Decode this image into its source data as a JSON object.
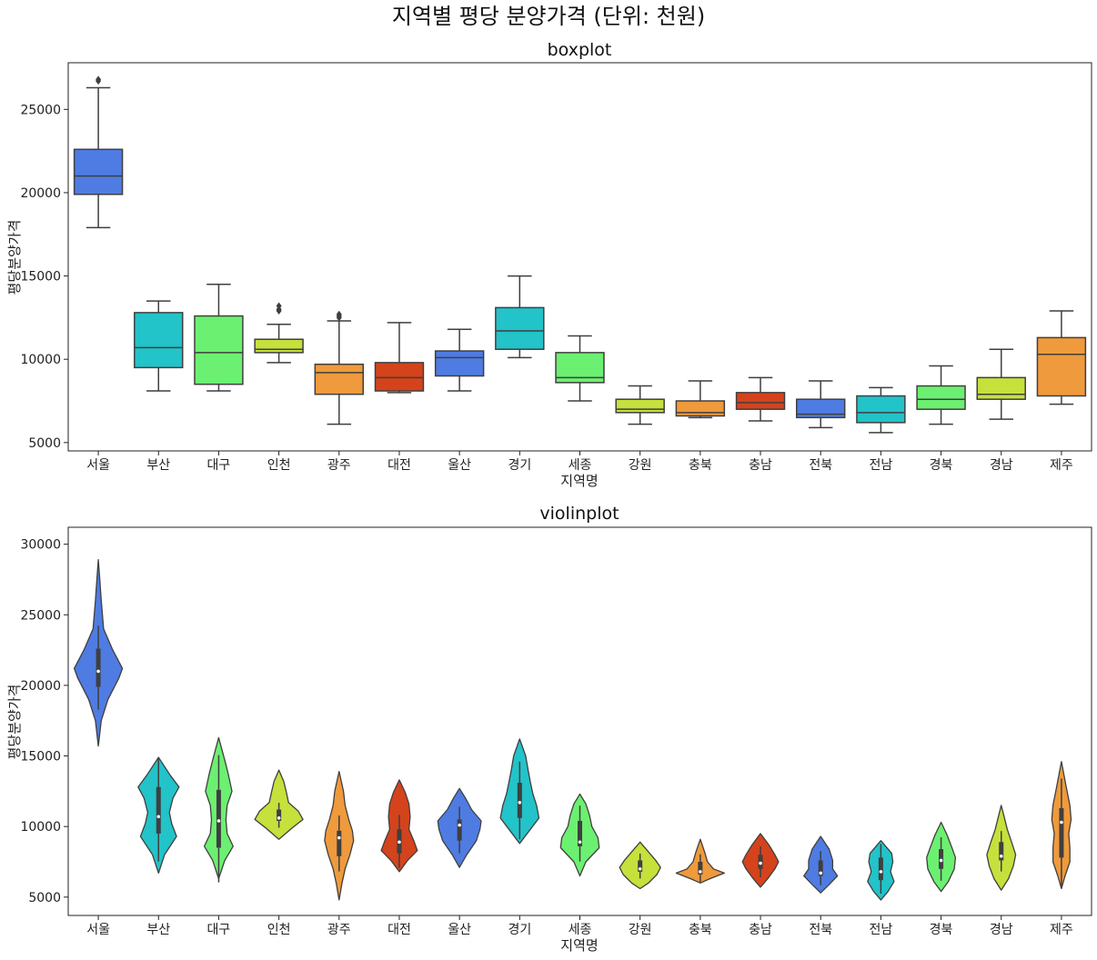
{
  "suptitle": "지역별 평당 분양가격 (단위: 천원)",
  "palette": [
    "#4f7ce2",
    "#22c3c9",
    "#6cf071",
    "#c6e03c",
    "#ef9a3c",
    "#d4431c",
    "#4f7ce2",
    "#22c3c9",
    "#6cf071",
    "#c6e03c",
    "#ef9a3c",
    "#d4431c",
    "#4f7ce2",
    "#22c3c9",
    "#6cf071",
    "#c6e03c",
    "#ef9a3c"
  ],
  "chart_data": [
    {
      "type": "boxplot",
      "title": "boxplot",
      "xlabel": "지역명",
      "ylabel": "평당분양가격",
      "ylim": [
        4500,
        27800
      ],
      "yticks": [
        5000,
        10000,
        15000,
        20000,
        25000
      ],
      "categories": [
        "서울",
        "부산",
        "대구",
        "인천",
        "광주",
        "대전",
        "울산",
        "경기",
        "세종",
        "강원",
        "충북",
        "충남",
        "전북",
        "전남",
        "경북",
        "경남",
        "제주"
      ],
      "boxes": [
        {
          "whislo": 17900,
          "q1": 19900,
          "med": 21000,
          "q3": 22600,
          "whishi": 26300,
          "fliers": [
            26700,
            26800
          ]
        },
        {
          "whislo": 8100,
          "q1": 9500,
          "med": 10700,
          "q3": 12800,
          "whishi": 13500,
          "fliers": []
        },
        {
          "whislo": 8100,
          "q1": 8500,
          "med": 10400,
          "q3": 12600,
          "whishi": 14500,
          "fliers": []
        },
        {
          "whislo": 9800,
          "q1": 10400,
          "med": 10600,
          "q3": 11200,
          "whishi": 12100,
          "fliers": [
            12900,
            13000,
            13200
          ]
        },
        {
          "whislo": 6100,
          "q1": 7900,
          "med": 9200,
          "q3": 9700,
          "whishi": 12300,
          "fliers": [
            12500,
            12600,
            12700
          ]
        },
        {
          "whislo": 8000,
          "q1": 8100,
          "med": 8900,
          "q3": 9800,
          "whishi": 12200,
          "fliers": []
        },
        {
          "whislo": 8100,
          "q1": 9000,
          "med": 10100,
          "q3": 10500,
          "whishi": 11800,
          "fliers": []
        },
        {
          "whislo": 10100,
          "q1": 10600,
          "med": 11700,
          "q3": 13100,
          "whishi": 15000,
          "fliers": []
        },
        {
          "whislo": 7500,
          "q1": 8600,
          "med": 8900,
          "q3": 10400,
          "whishi": 11400,
          "fliers": []
        },
        {
          "whislo": 6100,
          "q1": 6800,
          "med": 7000,
          "q3": 7600,
          "whishi": 8400,
          "fliers": []
        },
        {
          "whislo": 6500,
          "q1": 6600,
          "med": 6800,
          "q3": 7500,
          "whishi": 8700,
          "fliers": []
        },
        {
          "whislo": 6300,
          "q1": 7000,
          "med": 7400,
          "q3": 8000,
          "whishi": 8900,
          "fliers": []
        },
        {
          "whislo": 5900,
          "q1": 6500,
          "med": 6700,
          "q3": 7600,
          "whishi": 8700,
          "fliers": []
        },
        {
          "whislo": 5600,
          "q1": 6200,
          "med": 6800,
          "q3": 7800,
          "whishi": 8300,
          "fliers": []
        },
        {
          "whislo": 6100,
          "q1": 7000,
          "med": 7600,
          "q3": 8400,
          "whishi": 9600,
          "fliers": []
        },
        {
          "whislo": 6400,
          "q1": 7600,
          "med": 7900,
          "q3": 8900,
          "whishi": 10600,
          "fliers": []
        },
        {
          "whislo": 7300,
          "q1": 7800,
          "med": 10300,
          "q3": 11300,
          "whishi": 12900,
          "fliers": []
        }
      ]
    },
    {
      "type": "violin",
      "title": "violinplot",
      "xlabel": "지역명",
      "ylabel": "평당분양가격",
      "ylim": [
        3700,
        31200
      ],
      "yticks": [
        5000,
        10000,
        15000,
        20000,
        25000,
        30000
      ],
      "categories": [
        "서울",
        "부산",
        "대구",
        "인천",
        "광주",
        "대전",
        "울산",
        "경기",
        "세종",
        "강원",
        "충북",
        "충남",
        "전북",
        "전남",
        "경북",
        "경남",
        "제주"
      ],
      "violins": [
        {
          "min": 15700,
          "max": 28900,
          "q1": 19900,
          "med": 21000,
          "q3": 22600,
          "shape": [
            [
              15700,
              0
            ],
            [
              17500,
              0.12
            ],
            [
              19000,
              0.4
            ],
            [
              20500,
              0.85
            ],
            [
              21200,
              1.0
            ],
            [
              22500,
              0.6
            ],
            [
              24000,
              0.22
            ],
            [
              26000,
              0.12
            ],
            [
              27500,
              0.06
            ],
            [
              28900,
              0
            ]
          ]
        },
        {
          "min": 6700,
          "max": 14900,
          "q1": 9500,
          "med": 10700,
          "q3": 12800,
          "shape": [
            [
              6700,
              0
            ],
            [
              8000,
              0.25
            ],
            [
              9300,
              0.75
            ],
            [
              10200,
              0.55
            ],
            [
              11000,
              0.45
            ],
            [
              12000,
              0.6
            ],
            [
              12800,
              0.85
            ],
            [
              13600,
              0.5
            ],
            [
              14900,
              0
            ]
          ]
        },
        {
          "min": 6300,
          "max": 16300,
          "q1": 8500,
          "med": 10400,
          "q3": 12600,
          "shape": [
            [
              6300,
              0
            ],
            [
              7600,
              0.25
            ],
            [
              8600,
              0.6
            ],
            [
              9500,
              0.35
            ],
            [
              10500,
              0.3
            ],
            [
              11500,
              0.35
            ],
            [
              12500,
              0.55
            ],
            [
              13700,
              0.4
            ],
            [
              14700,
              0.25
            ],
            [
              16300,
              0
            ]
          ]
        },
        {
          "min": 9100,
          "max": 14000,
          "q1": 10400,
          "med": 10600,
          "q3": 11200,
          "shape": [
            [
              9100,
              0
            ],
            [
              9900,
              0.55
            ],
            [
              10500,
              1.0
            ],
            [
              11100,
              0.8
            ],
            [
              11700,
              0.4
            ],
            [
              12500,
              0.3
            ],
            [
              13200,
              0.2
            ],
            [
              14000,
              0
            ]
          ]
        },
        {
          "min": 4800,
          "max": 13900,
          "q1": 7900,
          "med": 9200,
          "q3": 9700,
          "shape": [
            [
              4800,
              0
            ],
            [
              6000,
              0.12
            ],
            [
              7000,
              0.25
            ],
            [
              8000,
              0.45
            ],
            [
              9000,
              0.6
            ],
            [
              9700,
              0.55
            ],
            [
              10500,
              0.4
            ],
            [
              11500,
              0.25
            ],
            [
              12500,
              0.18
            ],
            [
              13900,
              0
            ]
          ]
        },
        {
          "min": 6800,
          "max": 13300,
          "q1": 8100,
          "med": 8900,
          "q3": 9800,
          "shape": [
            [
              6800,
              0
            ],
            [
              7600,
              0.35
            ],
            [
              8300,
              0.75
            ],
            [
              9000,
              0.6
            ],
            [
              9800,
              0.4
            ],
            [
              10700,
              0.45
            ],
            [
              11600,
              0.4
            ],
            [
              12400,
              0.25
            ],
            [
              13300,
              0
            ]
          ]
        },
        {
          "min": 7100,
          "max": 12700,
          "q1": 9000,
          "med": 10100,
          "q3": 10500,
          "shape": [
            [
              7100,
              0
            ],
            [
              8000,
              0.3
            ],
            [
              9000,
              0.7
            ],
            [
              9800,
              0.85
            ],
            [
              10400,
              0.9
            ],
            [
              11200,
              0.5
            ],
            [
              12000,
              0.25
            ],
            [
              12700,
              0
            ]
          ]
        },
        {
          "min": 8800,
          "max": 16200,
          "q1": 10600,
          "med": 11700,
          "q3": 13100,
          "shape": [
            [
              8800,
              0
            ],
            [
              9700,
              0.4
            ],
            [
              10600,
              0.8
            ],
            [
              11500,
              0.7
            ],
            [
              12300,
              0.55
            ],
            [
              13100,
              0.45
            ],
            [
              14000,
              0.35
            ],
            [
              15000,
              0.25
            ],
            [
              16200,
              0
            ]
          ]
        },
        {
          "min": 6500,
          "max": 12300,
          "q1": 8600,
          "med": 8900,
          "q3": 10400,
          "shape": [
            [
              6500,
              0
            ],
            [
              7500,
              0.25
            ],
            [
              8500,
              0.8
            ],
            [
              9200,
              0.75
            ],
            [
              10000,
              0.5
            ],
            [
              10800,
              0.4
            ],
            [
              11600,
              0.25
            ],
            [
              12300,
              0
            ]
          ]
        },
        {
          "min": 5600,
          "max": 8900,
          "q1": 6800,
          "med": 7000,
          "q3": 7600,
          "shape": [
            [
              5600,
              0
            ],
            [
              6000,
              0.35
            ],
            [
              6600,
              0.7
            ],
            [
              7100,
              0.85
            ],
            [
              7600,
              0.65
            ],
            [
              8200,
              0.35
            ],
            [
              8900,
              0
            ]
          ]
        },
        {
          "min": 6000,
          "max": 9100,
          "q1": 6600,
          "med": 6800,
          "q3": 7500,
          "shape": [
            [
              6000,
              0
            ],
            [
              6300,
              0.4
            ],
            [
              6700,
              1.0
            ],
            [
              7000,
              0.55
            ],
            [
              7500,
              0.3
            ],
            [
              8200,
              0.18
            ],
            [
              9100,
              0
            ]
          ]
        },
        {
          "min": 5700,
          "max": 9500,
          "q1": 7000,
          "med": 7400,
          "q3": 8000,
          "shape": [
            [
              5700,
              0
            ],
            [
              6300,
              0.3
            ],
            [
              7000,
              0.6
            ],
            [
              7500,
              0.75
            ],
            [
              8000,
              0.6
            ],
            [
              8700,
              0.35
            ],
            [
              9500,
              0
            ]
          ]
        },
        {
          "min": 5300,
          "max": 9300,
          "q1": 6500,
          "med": 6700,
          "q3": 7600,
          "shape": [
            [
              5300,
              0
            ],
            [
              5800,
              0.3
            ],
            [
              6500,
              0.7
            ],
            [
              7000,
              0.5
            ],
            [
              7600,
              0.5
            ],
            [
              8400,
              0.35
            ],
            [
              9300,
              0
            ]
          ]
        },
        {
          "min": 4800,
          "max": 9000,
          "q1": 6200,
          "med": 6800,
          "q3": 7800,
          "shape": [
            [
              4800,
              0
            ],
            [
              5400,
              0.3
            ],
            [
              6100,
              0.55
            ],
            [
              6800,
              0.4
            ],
            [
              7500,
              0.5
            ],
            [
              8100,
              0.45
            ],
            [
              9000,
              0
            ]
          ]
        },
        {
          "min": 5400,
          "max": 10300,
          "q1": 7000,
          "med": 7600,
          "q3": 8400,
          "shape": [
            [
              5400,
              0
            ],
            [
              6100,
              0.3
            ],
            [
              7000,
              0.55
            ],
            [
              7800,
              0.6
            ],
            [
              8500,
              0.45
            ],
            [
              9400,
              0.25
            ],
            [
              10300,
              0
            ]
          ]
        },
        {
          "min": 5500,
          "max": 11500,
          "q1": 7600,
          "med": 7900,
          "q3": 8900,
          "shape": [
            [
              5500,
              0
            ],
            [
              6300,
              0.3
            ],
            [
              7200,
              0.5
            ],
            [
              8000,
              0.6
            ],
            [
              8800,
              0.45
            ],
            [
              9800,
              0.25
            ],
            [
              10700,
              0.12
            ],
            [
              11500,
              0
            ]
          ]
        },
        {
          "min": 5600,
          "max": 14600,
          "q1": 7800,
          "med": 10300,
          "q3": 11300,
          "shape": [
            [
              5600,
              0
            ],
            [
              6500,
              0.15
            ],
            [
              7500,
              0.35
            ],
            [
              8500,
              0.35
            ],
            [
              9500,
              0.3
            ],
            [
              10500,
              0.4
            ],
            [
              11500,
              0.35
            ],
            [
              12800,
              0.2
            ],
            [
              14600,
              0
            ]
          ]
        }
      ]
    }
  ]
}
